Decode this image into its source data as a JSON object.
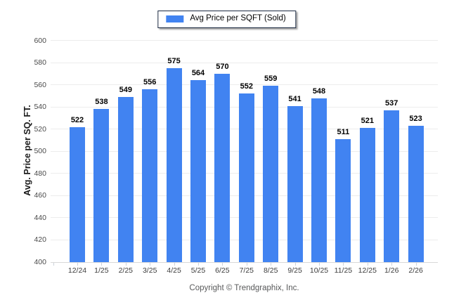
{
  "legend": {
    "label": "Avg Price per SQFT (Sold)"
  },
  "y_axis_title": "Avg. Price per SQ. FT.",
  "footer": "Copyright © Trendgraphix, Inc.",
  "colors": {
    "bar": "#4183f1",
    "legend_border": "#1c2a42",
    "gridline": "#ececec",
    "axis_line": "#d9d9d9"
  },
  "chart_data": {
    "type": "bar",
    "title": "Avg Price per SQFT (Sold)",
    "categories": [
      "12/24",
      "1/25",
      "2/25",
      "3/25",
      "4/25",
      "5/25",
      "6/25",
      "7/25",
      "8/25",
      "9/25",
      "10/25",
      "11/25",
      "12/25",
      "1/26",
      "2/26"
    ],
    "values": [
      522,
      538,
      549,
      556,
      575,
      564,
      570,
      552,
      559,
      541,
      548,
      511,
      521,
      537,
      523
    ],
    "xlabel": "",
    "ylabel": "Avg. Price per SQ. FT.",
    "ylim": [
      400,
      600
    ],
    "ytick_step": 20,
    "grid": true,
    "legend_position": "top-center",
    "bar_color": "#4183f1",
    "value_labels_shown": true
  }
}
